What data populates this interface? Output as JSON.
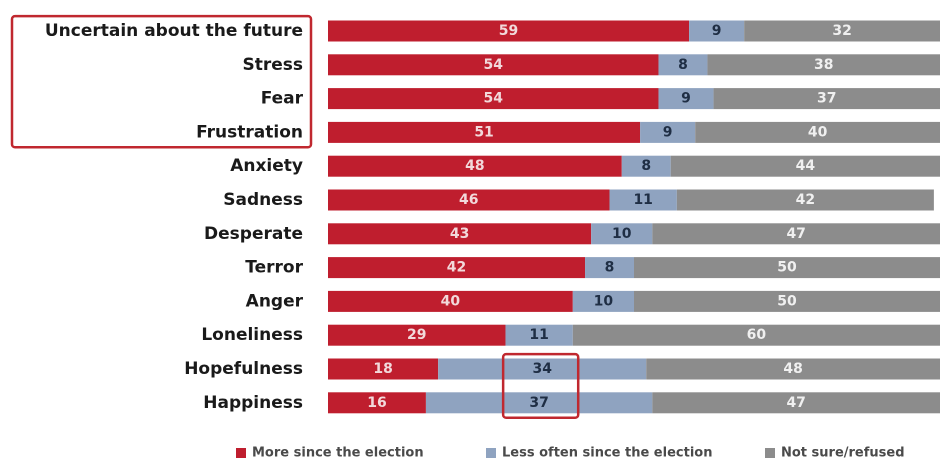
{
  "chart_data": {
    "type": "bar",
    "orientation": "horizontal",
    "stacked": true,
    "percent_stacked": true,
    "categories": [
      "Uncertain about the future",
      "Stress",
      "Fear",
      "Frustration",
      "Anxiety",
      "Sadness",
      "Desperate",
      "Terror",
      "Anger",
      "Loneliness",
      "Hopefulness",
      "Happiness"
    ],
    "series": [
      {
        "name": "More since the election",
        "color": "#bf1e2e",
        "label_color": "#f2d9db",
        "values": [
          59,
          54,
          54,
          51,
          48,
          46,
          43,
          42,
          40,
          29,
          18,
          16
        ]
      },
      {
        "name": "Less often since the election",
        "color": "#8fa3c0",
        "label_color": "#1f2e44",
        "values": [
          9,
          8,
          9,
          9,
          8,
          11,
          10,
          8,
          10,
          11,
          34,
          37
        ]
      },
      {
        "name": "Not sure/refused",
        "color": "#8c8c8c",
        "label_color": "#f0f0f0",
        "values": [
          32,
          38,
          37,
          40,
          44,
          42,
          47,
          50,
          50,
          60,
          48,
          47
        ]
      }
    ],
    "xlim": [
      0,
      100
    ],
    "grid": false,
    "legend_position": "bottom-right",
    "highlight_color": "#c0282f",
    "highlights": [
      {
        "categories": [
          "Uncertain about the future",
          "Stress",
          "Fear",
          "Frustration"
        ],
        "target": "category-labels"
      },
      {
        "categories": [
          "Hopefulness",
          "Happiness"
        ],
        "target": "series-values",
        "series": "Less often since the election"
      }
    ]
  }
}
